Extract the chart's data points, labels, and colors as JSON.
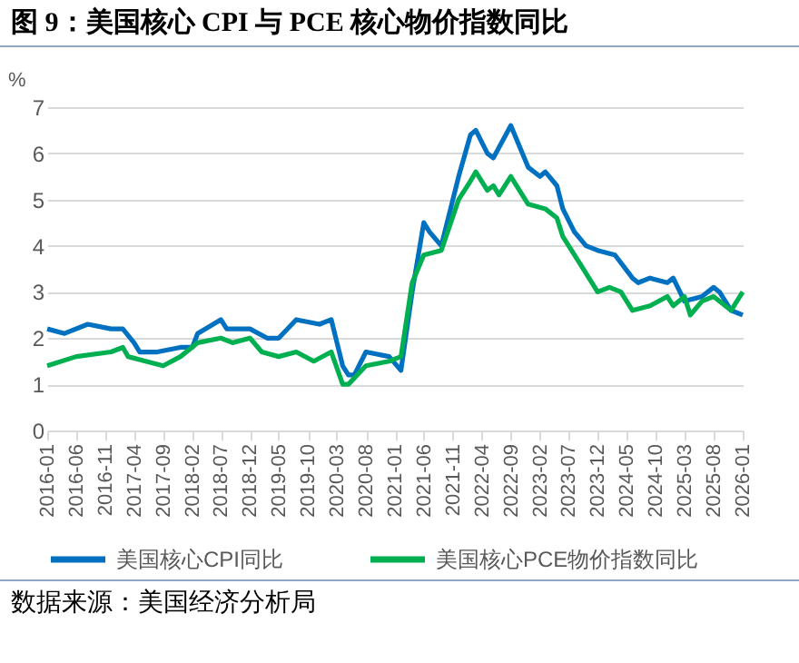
{
  "chart_data": {
    "type": "line",
    "title": "图 9：美国核心 CPI 与 PCE 核心物价指数同比",
    "ylabel": "%",
    "annotations": [
      "数据来源：美国经济分析局"
    ],
    "xlim": [
      "2016-01",
      "2026-01"
    ],
    "xticks": [
      "2016-01",
      "2016-06",
      "2016-11",
      "2017-04",
      "2017-09",
      "2018-02",
      "2018-07",
      "2018-12",
      "2019-05",
      "2019-10",
      "2020-03",
      "2020-08",
      "2021-01",
      "2021-06",
      "2021-11",
      "2022-04",
      "2022-09",
      "2023-02",
      "2023-07",
      "2023-12",
      "2024-05",
      "2024-10",
      "2025-03",
      "2025-08",
      "2026-01"
    ],
    "ylim": [
      0,
      7
    ],
    "yticks": [
      0,
      1,
      2,
      3,
      4,
      5,
      6,
      7
    ],
    "grid": "y",
    "legend": "bottom",
    "series": [
      {
        "name": "美国核心CPI同比",
        "color": "#0070c0",
        "x": [
          "2016-01",
          "2016-04",
          "2016-08",
          "2016-12",
          "2017-02",
          "2017-04",
          "2017-05",
          "2017-08",
          "2017-12",
          "2018-02",
          "2018-03",
          "2018-07",
          "2018-08",
          "2018-12",
          "2019-03",
          "2019-05",
          "2019-08",
          "2019-12",
          "2020-02",
          "2020-04",
          "2020-05",
          "2020-06",
          "2020-08",
          "2020-12",
          "2021-02",
          "2021-04",
          "2021-06",
          "2021-07",
          "2021-09",
          "2021-12",
          "2022-02",
          "2022-03",
          "2022-05",
          "2022-06",
          "2022-09",
          "2022-12",
          "2023-02",
          "2023-03",
          "2023-05",
          "2023-06",
          "2023-08",
          "2023-10",
          "2023-12",
          "2024-03",
          "2024-06",
          "2024-07",
          "2024-09",
          "2024-12",
          "2025-01",
          "2025-03",
          "2025-06",
          "2025-08",
          "2025-09",
          "2025-11",
          "2026-01"
        ],
        "values": [
          2.2,
          2.1,
          2.3,
          2.2,
          2.2,
          1.9,
          1.7,
          1.7,
          1.8,
          1.8,
          2.1,
          2.4,
          2.2,
          2.2,
          2.0,
          2.0,
          2.4,
          2.3,
          2.4,
          1.4,
          1.2,
          1.2,
          1.7,
          1.6,
          1.3,
          3.0,
          4.5,
          4.3,
          4.0,
          5.5,
          6.4,
          6.5,
          6.0,
          5.9,
          6.6,
          5.7,
          5.5,
          5.6,
          5.3,
          4.8,
          4.3,
          4.0,
          3.9,
          3.8,
          3.3,
          3.2,
          3.3,
          3.2,
          3.3,
          2.8,
          2.9,
          3.1,
          3.0,
          2.6,
          2.5
        ]
      },
      {
        "name": "美国核心PCE物价指数同比",
        "color": "#00b050",
        "x": [
          "2016-01",
          "2016-06",
          "2016-12",
          "2017-02",
          "2017-03",
          "2017-06",
          "2017-09",
          "2017-12",
          "2018-03",
          "2018-07",
          "2018-09",
          "2018-12",
          "2019-02",
          "2019-05",
          "2019-08",
          "2019-11",
          "2020-02",
          "2020-04",
          "2020-05",
          "2020-08",
          "2020-12",
          "2021-02",
          "2021-04",
          "2021-06",
          "2021-09",
          "2021-12",
          "2022-02",
          "2022-03",
          "2022-05",
          "2022-06",
          "2022-07",
          "2022-09",
          "2022-12",
          "2023-03",
          "2023-05",
          "2023-06",
          "2023-09",
          "2023-12",
          "2024-02",
          "2024-04",
          "2024-06",
          "2024-09",
          "2024-12",
          "2025-01",
          "2025-03",
          "2025-04",
          "2025-06",
          "2025-08",
          "2025-11",
          "2026-01"
        ],
        "values": [
          1.4,
          1.6,
          1.7,
          1.8,
          1.6,
          1.5,
          1.4,
          1.6,
          1.9,
          2.0,
          1.9,
          2.0,
          1.7,
          1.6,
          1.7,
          1.5,
          1.7,
          1.0,
          1.0,
          1.4,
          1.5,
          1.6,
          3.2,
          3.8,
          3.9,
          5.0,
          5.4,
          5.6,
          5.2,
          5.3,
          5.1,
          5.5,
          4.9,
          4.8,
          4.6,
          4.2,
          3.6,
          3.0,
          3.1,
          3.0,
          2.6,
          2.7,
          2.9,
          2.7,
          2.9,
          2.5,
          2.8,
          2.9,
          2.6,
          3.0
        ]
      }
    ]
  }
}
